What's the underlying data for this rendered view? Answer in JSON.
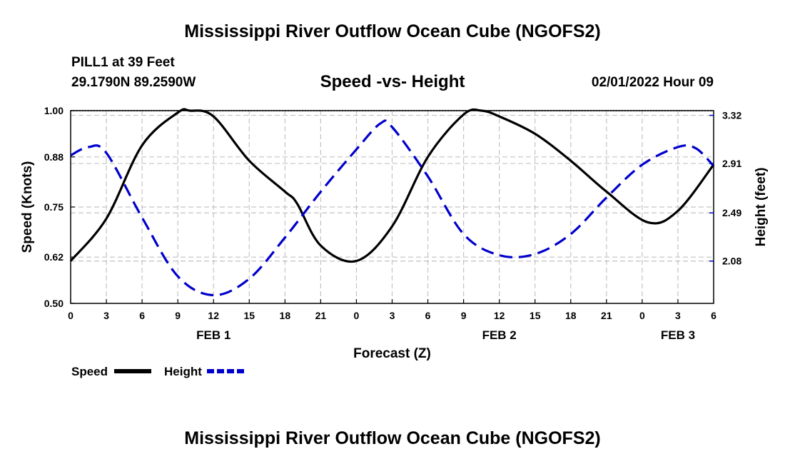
{
  "page": {
    "title": "Mississippi River Outflow Ocean Cube (NGOFS2)",
    "title_repeat": "Mississippi River Outflow Ocean Cube (NGOFS2)",
    "station": "PILL1 at 39 Feet",
    "coords": "29.1790N  89.2590W",
    "subtitle": "Speed -vs- Height",
    "timestamp": "02/01/2022 Hour 09"
  },
  "chart_data": {
    "type": "line",
    "xlabel": "Forecast (Z)",
    "ylabel": "Speed (Knots)",
    "y2label": "Height (feet)",
    "xlim": [
      0,
      54
    ],
    "ylim": [
      0.5,
      1.0
    ],
    "y2lim": [
      1.72,
      3.36
    ],
    "x_tick_labels": [
      "0",
      "3",
      "6",
      "9",
      "12",
      "15",
      "18",
      "21",
      "0",
      "3",
      "6",
      "9",
      "12",
      "15",
      "18",
      "21",
      "0",
      "3",
      "6"
    ],
    "date_labels": [
      {
        "label": "FEB 1",
        "x": 12
      },
      {
        "label": "FEB 2",
        "x": 36
      },
      {
        "label": "FEB 3",
        "x": 51
      }
    ],
    "y_ticks": [
      {
        "value": 0.5,
        "label": "0.50"
      },
      {
        "value": 0.62,
        "label": "0.62"
      },
      {
        "value": 0.75,
        "label": "0.75"
      },
      {
        "value": 0.88,
        "label": "0.88"
      },
      {
        "value": 1.0,
        "label": "1.00"
      }
    ],
    "y2_ticks": [
      {
        "value": 2.08,
        "label": "2.08"
      },
      {
        "value": 2.49,
        "label": "2.49"
      },
      {
        "value": 2.91,
        "label": "2.91"
      },
      {
        "value": 3.32,
        "label": "3.32"
      }
    ],
    "series": [
      {
        "name": "Speed",
        "axis": "left",
        "color": "#000000",
        "dash": "solid",
        "x": [
          0,
          3,
          6,
          9,
          10,
          12,
          15,
          18,
          19,
          21,
          24,
          27,
          30,
          33,
          34.5,
          36,
          39,
          42,
          45,
          48.5,
          51,
          54
        ],
        "values": [
          0.61,
          0.72,
          0.91,
          0.995,
          1.0,
          0.985,
          0.87,
          0.79,
          0.76,
          0.65,
          0.61,
          0.7,
          0.88,
          0.99,
          1.0,
          0.985,
          0.94,
          0.87,
          0.79,
          0.71,
          0.74,
          0.86
        ]
      },
      {
        "name": "Height",
        "axis": "right",
        "color": "#0000cc",
        "dash": "dashed",
        "x": [
          0,
          1.5,
          3,
          6,
          9,
          12,
          15,
          18,
          21,
          24,
          26,
          27,
          30,
          33,
          36,
          39,
          42,
          45,
          48,
          51,
          52.5,
          54
        ],
        "values": [
          2.98,
          3.05,
          3.0,
          2.45,
          1.95,
          1.79,
          1.93,
          2.28,
          2.67,
          3.03,
          3.25,
          3.22,
          2.8,
          2.31,
          2.13,
          2.14,
          2.31,
          2.62,
          2.9,
          3.05,
          3.04,
          2.89
        ]
      }
    ]
  },
  "legend": {
    "speed_label": "Speed",
    "height_label": "Height"
  }
}
